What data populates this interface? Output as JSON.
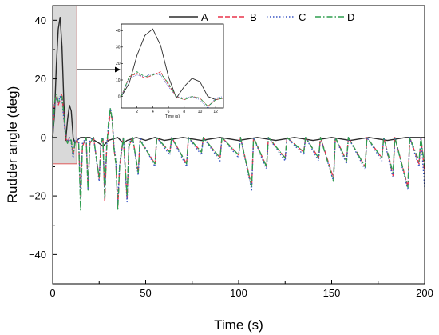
{
  "chart_data": {
    "type": "line",
    "xlabel": "Time (s)",
    "ylabel": "Rudder angle (deg)",
    "xlim": [
      0,
      200
    ],
    "ylim": [
      -50,
      45
    ],
    "xticks": [
      0,
      50,
      100,
      150,
      200
    ],
    "yticks": [
      -40,
      -20,
      0,
      20,
      40
    ],
    "grid": false,
    "legend_position": "top-right",
    "highlight_range": {
      "x": [
        0,
        13
      ],
      "y": [
        -9,
        45
      ]
    },
    "series": [
      {
        "name": "A",
        "color": "#2b2b2b",
        "dash": "solid",
        "points": [
          [
            0,
            0
          ],
          [
            1,
            8
          ],
          [
            2,
            25
          ],
          [
            3,
            37
          ],
          [
            4,
            41
          ],
          [
            5,
            31
          ],
          [
            6,
            12
          ],
          [
            7,
            -1
          ],
          [
            8,
            6
          ],
          [
            9,
            11
          ],
          [
            10,
            9
          ],
          [
            11,
            0
          ],
          [
            12,
            -2
          ],
          [
            13,
            -1
          ],
          [
            15,
            0
          ],
          [
            20,
            0
          ],
          [
            25,
            -2
          ],
          [
            27,
            -3
          ],
          [
            30,
            -1
          ],
          [
            35,
            0
          ],
          [
            38,
            -2
          ],
          [
            40,
            -1
          ],
          [
            45,
            0
          ],
          [
            50,
            -1
          ],
          [
            55,
            0
          ],
          [
            60,
            -1
          ],
          [
            70,
            0
          ],
          [
            80,
            -1
          ],
          [
            90,
            0
          ],
          [
            100,
            -1
          ],
          [
            110,
            0
          ],
          [
            120,
            -1
          ],
          [
            130,
            0
          ],
          [
            140,
            -1
          ],
          [
            150,
            0
          ],
          [
            160,
            -1
          ],
          [
            170,
            0
          ],
          [
            180,
            -1
          ],
          [
            190,
            0
          ],
          [
            200,
            0
          ]
        ]
      },
      {
        "name": "B",
        "color": "#e8334a",
        "dash": "dashed",
        "points": [
          [
            0,
            0
          ],
          [
            1,
            12
          ],
          [
            2,
            14
          ],
          [
            3,
            11
          ],
          [
            4,
            13
          ],
          [
            5,
            15
          ],
          [
            6,
            7
          ],
          [
            7,
            0
          ],
          [
            8,
            -2
          ],
          [
            9,
            0
          ],
          [
            10,
            -1
          ],
          [
            11,
            -6
          ],
          [
            12,
            -2
          ],
          [
            13,
            -1
          ],
          [
            14,
            -2
          ],
          [
            15,
            -20
          ],
          [
            16,
            -3
          ],
          [
            18,
            0
          ],
          [
            19,
            -17
          ],
          [
            20,
            -2
          ],
          [
            22,
            0
          ],
          [
            25,
            -14
          ],
          [
            26,
            -2
          ],
          [
            27,
            0
          ],
          [
            28,
            -22
          ],
          [
            29,
            -4
          ],
          [
            30,
            3
          ],
          [
            31,
            9
          ],
          [
            32,
            6
          ],
          [
            33,
            -4
          ],
          [
            34,
            -9
          ],
          [
            35,
            -24
          ],
          [
            36,
            -10
          ],
          [
            38,
            0
          ],
          [
            40,
            -21
          ],
          [
            41,
            -3
          ],
          [
            43,
            0
          ],
          [
            46,
            -12
          ],
          [
            47,
            -1
          ],
          [
            55,
            -9
          ],
          [
            56,
            0
          ],
          [
            63,
            -5
          ],
          [
            64,
            0
          ],
          [
            72,
            -9
          ],
          [
            73,
            0
          ],
          [
            80,
            -5
          ],
          [
            81,
            0
          ],
          [
            90,
            -7
          ],
          [
            91,
            0
          ],
          [
            100,
            -6
          ],
          [
            101,
            0
          ],
          [
            107,
            -17
          ],
          [
            108,
            0
          ],
          [
            115,
            -10
          ],
          [
            116,
            0
          ],
          [
            125,
            -7
          ],
          [
            126,
            0
          ],
          [
            135,
            -5
          ],
          [
            136,
            0
          ],
          [
            143,
            -7
          ],
          [
            144,
            0
          ],
          [
            151,
            -14
          ],
          [
            152,
            0
          ],
          [
            158,
            -8
          ],
          [
            159,
            0
          ],
          [
            168,
            -10
          ],
          [
            169,
            0
          ],
          [
            177,
            -7
          ],
          [
            178,
            0
          ],
          [
            183,
            -13
          ],
          [
            184,
            0
          ],
          [
            191,
            -17
          ],
          [
            192,
            0
          ],
          [
            197,
            -9
          ],
          [
            198,
            0
          ],
          [
            200,
            -12
          ]
        ]
      },
      {
        "name": "C",
        "color": "#3a57c4",
        "dash": "dotted",
        "points": [
          [
            0,
            0
          ],
          [
            1,
            11
          ],
          [
            2,
            13
          ],
          [
            3,
            12
          ],
          [
            4,
            14
          ],
          [
            5,
            13
          ],
          [
            6,
            6
          ],
          [
            7,
            0
          ],
          [
            8,
            -1
          ],
          [
            9,
            0
          ],
          [
            10,
            -2
          ],
          [
            11,
            -7
          ],
          [
            12,
            -1
          ],
          [
            13,
            0
          ],
          [
            14,
            -1
          ],
          [
            15,
            -21
          ],
          [
            16,
            -2
          ],
          [
            18,
            0
          ],
          [
            19,
            -18
          ],
          [
            20,
            -1
          ],
          [
            22,
            0
          ],
          [
            25,
            -15
          ],
          [
            26,
            -1
          ],
          [
            27,
            0
          ],
          [
            28,
            -21
          ],
          [
            29,
            -3
          ],
          [
            30,
            4
          ],
          [
            31,
            10
          ],
          [
            32,
            7
          ],
          [
            33,
            -3
          ],
          [
            34,
            -8
          ],
          [
            35,
            -23
          ],
          [
            36,
            -9
          ],
          [
            38,
            0
          ],
          [
            40,
            -22
          ],
          [
            41,
            -2
          ],
          [
            43,
            0
          ],
          [
            46,
            -13
          ],
          [
            47,
            0
          ],
          [
            55,
            -10
          ],
          [
            56,
            0
          ],
          [
            63,
            -6
          ],
          [
            64,
            0
          ],
          [
            72,
            -10
          ],
          [
            73,
            0
          ],
          [
            80,
            -6
          ],
          [
            81,
            0
          ],
          [
            90,
            -8
          ],
          [
            91,
            0
          ],
          [
            100,
            -7
          ],
          [
            101,
            0
          ],
          [
            107,
            -18
          ],
          [
            108,
            0
          ],
          [
            115,
            -11
          ],
          [
            116,
            0
          ],
          [
            125,
            -8
          ],
          [
            126,
            0
          ],
          [
            135,
            -6
          ],
          [
            136,
            0
          ],
          [
            143,
            -8
          ],
          [
            144,
            0
          ],
          [
            151,
            -15
          ],
          [
            152,
            0
          ],
          [
            158,
            -9
          ],
          [
            159,
            0
          ],
          [
            168,
            -11
          ],
          [
            169,
            0
          ],
          [
            177,
            -8
          ],
          [
            178,
            0
          ],
          [
            183,
            -14
          ],
          [
            184,
            0
          ],
          [
            191,
            -18
          ],
          [
            192,
            0
          ],
          [
            197,
            -10
          ],
          [
            198,
            0
          ],
          [
            200,
            -17
          ]
        ]
      },
      {
        "name": "D",
        "color": "#2f9e4f",
        "dash": "dashdot",
        "points": [
          [
            0,
            0
          ],
          [
            1,
            12
          ],
          [
            2,
            15
          ],
          [
            3,
            12
          ],
          [
            4,
            13
          ],
          [
            5,
            14
          ],
          [
            6,
            8
          ],
          [
            7,
            0
          ],
          [
            8,
            -2
          ],
          [
            9,
            0
          ],
          [
            10,
            -1
          ],
          [
            11,
            -6
          ],
          [
            12,
            -2
          ],
          [
            13,
            -1
          ],
          [
            14,
            -2
          ],
          [
            15,
            -25
          ],
          [
            16,
            -3
          ],
          [
            18,
            0
          ],
          [
            19,
            -18
          ],
          [
            20,
            -2
          ],
          [
            22,
            0
          ],
          [
            25,
            -14
          ],
          [
            26,
            -2
          ],
          [
            27,
            0
          ],
          [
            28,
            -21
          ],
          [
            29,
            -4
          ],
          [
            30,
            5
          ],
          [
            31,
            10
          ],
          [
            32,
            6
          ],
          [
            33,
            -4
          ],
          [
            34,
            -9
          ],
          [
            35,
            -25
          ],
          [
            36,
            -10
          ],
          [
            38,
            0
          ],
          [
            40,
            -20
          ],
          [
            41,
            -3
          ],
          [
            43,
            0
          ],
          [
            46,
            -12
          ],
          [
            47,
            -1
          ],
          [
            55,
            -9
          ],
          [
            56,
            0
          ],
          [
            63,
            -5
          ],
          [
            64,
            0
          ],
          [
            72,
            -9
          ],
          [
            73,
            0
          ],
          [
            80,
            -5
          ],
          [
            81,
            0
          ],
          [
            90,
            -7
          ],
          [
            91,
            0
          ],
          [
            100,
            -6
          ],
          [
            101,
            0
          ],
          [
            107,
            -17
          ],
          [
            108,
            0
          ],
          [
            115,
            -10
          ],
          [
            116,
            0
          ],
          [
            125,
            -7
          ],
          [
            126,
            0
          ],
          [
            135,
            -5
          ],
          [
            136,
            0
          ],
          [
            143,
            -7
          ],
          [
            144,
            0
          ],
          [
            151,
            -15
          ],
          [
            152,
            0
          ],
          [
            158,
            -8
          ],
          [
            159,
            0
          ],
          [
            168,
            -10
          ],
          [
            169,
            0
          ],
          [
            177,
            -7
          ],
          [
            178,
            0
          ],
          [
            183,
            -12
          ],
          [
            184,
            0
          ],
          [
            191,
            -17
          ],
          [
            192,
            0
          ],
          [
            197,
            -8
          ],
          [
            198,
            0
          ],
          [
            200,
            -10
          ]
        ]
      }
    ],
    "inset": {
      "xlabel": "Time (s)",
      "xlim": [
        0,
        13
      ],
      "ylim": [
        -7,
        44
      ],
      "xticks": [
        2,
        4,
        6,
        8,
        10,
        12
      ],
      "yticks": [
        0,
        10,
        20,
        30,
        40
      ]
    }
  }
}
